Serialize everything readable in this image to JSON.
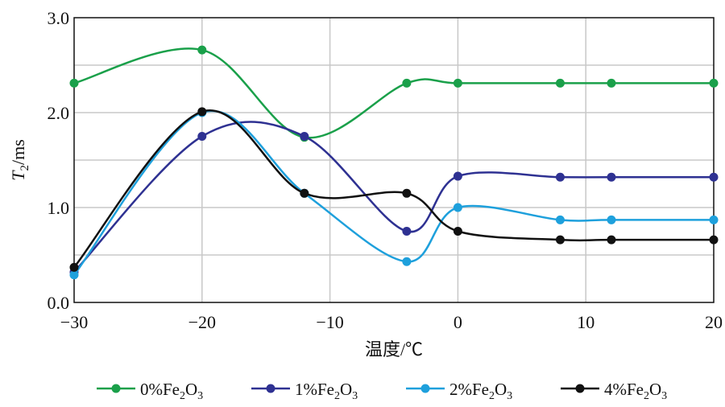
{
  "chart_data": {
    "type": "line",
    "title": "",
    "xlabel": "温度/℃",
    "ylabel": "T2/ms",
    "ylabel_main": "T",
    "ylabel_sub": "2",
    "ylabel_unit": "/ms",
    "xlim": [
      -30,
      20
    ],
    "ylim": [
      0,
      3
    ],
    "xticks": [
      -30,
      -20,
      -10,
      0,
      10,
      20
    ],
    "xtick_labels": [
      "−30",
      "−20",
      "−10",
      "0",
      "10",
      "20"
    ],
    "yticks": [
      0,
      1,
      2,
      3
    ],
    "ytick_labels": [
      "0.0",
      "1.0",
      "2.0",
      "3.0"
    ],
    "grid": true,
    "legend_position": "bottom",
    "x": [
      -30,
      -20,
      -12,
      -4,
      0,
      8,
      12,
      20
    ],
    "series": [
      {
        "name": "0%Fe2O3",
        "label_parts": [
          "0%Fe",
          "2",
          "O",
          "3"
        ],
        "color": "#1aa04a",
        "values": [
          2.31,
          2.66,
          1.74,
          2.31,
          2.31,
          2.31,
          2.31,
          2.31
        ]
      },
      {
        "name": "1%Fe2O3",
        "label_parts": [
          "1%Fe",
          "2",
          "O",
          "3"
        ],
        "color": "#2e3192",
        "values": [
          0.32,
          1.75,
          1.75,
          0.75,
          1.33,
          1.32,
          1.32,
          1.32
        ]
      },
      {
        "name": "2%Fe2O3",
        "label_parts": [
          "2%Fe",
          "2",
          "O",
          "3"
        ],
        "color": "#1ea0dc",
        "values": [
          0.29,
          2.0,
          1.15,
          0.43,
          1.0,
          0.87,
          0.87,
          0.87
        ]
      },
      {
        "name": "4%Fe2O3",
        "label_parts": [
          "4%Fe",
          "2",
          "O",
          "3"
        ],
        "color": "#111111",
        "values": [
          0.37,
          2.01,
          1.15,
          1.15,
          0.75,
          0.66,
          0.66,
          0.66
        ]
      }
    ]
  }
}
